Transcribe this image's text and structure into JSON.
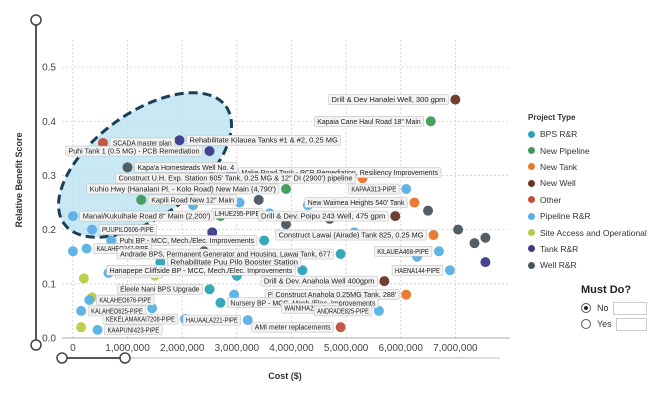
{
  "chart_data": {
    "type": "scatter",
    "xlabel": "Cost ($)",
    "ylabel": "Relative Benefit Score",
    "xlim": [
      -200000,
      8000000
    ],
    "ylim": [
      0,
      0.55
    ],
    "x_ticks": [
      0,
      1000000,
      2000000,
      3000000,
      4000000,
      5000000,
      6000000,
      7000000
    ],
    "x_tick_labels": [
      "0",
      "1,000,000",
      "2,000,000",
      "3,000,000",
      "4,000,000",
      "5,000,000",
      "6,000,000",
      "7,000,000"
    ],
    "y_ticks": [
      0,
      0.1,
      0.2,
      0.3,
      0.4,
      0.5
    ],
    "y_tick_labels": [
      "0.0",
      "0.1",
      "0.2",
      "0.3",
      "0.4",
      "0.5"
    ],
    "grid": true,
    "legend_position": "right",
    "legend_title": "Project Type",
    "series": [
      {
        "name": "BPS R&R",
        "color": "#2aa3b8"
      },
      {
        "name": "New Pipeline",
        "color": "#3e9a5a"
      },
      {
        "name": "New Tank",
        "color": "#e8762c"
      },
      {
        "name": "New Well",
        "color": "#6a3525"
      },
      {
        "name": "Other",
        "color": "#c0503a"
      },
      {
        "name": "Pipeline R&R",
        "color": "#5ab0e6"
      },
      {
        "name": "Site Access and Operational",
        "color": "#b8cc44"
      },
      {
        "name": "Tank R&R",
        "color": "#3a3a8a"
      },
      {
        "name": "Well R&R",
        "color": "#4a5560"
      }
    ],
    "labeled_points": [
      {
        "label": "Drill & Dev Hanalei Well, 300 gpm",
        "x": 7000000,
        "y": 0.44,
        "series": "New Well"
      },
      {
        "label": "Kapaia Cane Haul Road 18\" Main",
        "x": 6550000,
        "y": 0.4,
        "series": "New Pipeline"
      },
      {
        "label": "Rehabilitate Kilauea Tanks #1 & #2, 0.25 MG",
        "x": 1950000,
        "y": 0.365,
        "series": "Tank R&R"
      },
      {
        "label": "SCADA master plan",
        "x": 550000,
        "y": 0.36,
        "series": "Other"
      },
      {
        "label": "Puhi Tank 1 (0.5 MG) - PCB Remediation",
        "x": 2500000,
        "y": 0.345,
        "series": "Tank R&R"
      },
      {
        "label": "Kapa'a Homesteads Well No. 4",
        "x": 1000000,
        "y": 0.315,
        "series": "Well R&R"
      },
      {
        "label": "Make Road Tank - PCB Remediation, Resiliency Improvements",
        "x": 2900000,
        "y": 0.305,
        "series": "Tank R&R"
      },
      {
        "label": "Kapa'a 325' Tanks - Two 0.5 MG Tanks",
        "x": 1600000,
        "y": 0.295,
        "series": "New Tank"
      },
      {
        "label": "Construct U.H. Exp. Station 605' Tank, 0.25 MG & 12\" DI (2900') pipeline",
        "x": 5300000,
        "y": 0.295,
        "series": "New Tank"
      },
      {
        "label": "Kuhio Hwy (Hanalani Pl. - Kolo Road) New Main (4,790')",
        "x": 3900000,
        "y": 0.275,
        "series": "New Pipeline"
      },
      {
        "label": "KAPAA313-PIPE",
        "x": 6100000,
        "y": 0.275,
        "series": "Pipeline R&R"
      },
      {
        "label": "Kapili Road New 12\" Main",
        "x": 1250000,
        "y": 0.255,
        "series": "New Pipeline"
      },
      {
        "label": "New Waimea Heights 540' Tank",
        "x": 6250000,
        "y": 0.25,
        "series": "New Tank"
      },
      {
        "label": "LIHUE295-PIPE",
        "x": 3600000,
        "y": 0.23,
        "series": "Pipeline R&R"
      },
      {
        "label": "Drill & Dev. Poipu 243 Well, 475 gpm",
        "x": 5900000,
        "y": 0.225,
        "series": "New Well"
      },
      {
        "label": "Manai/Kukuihale Road 8\" Main (2,200')",
        "x": 2700000,
        "y": 0.225,
        "series": "New Pipeline"
      },
      {
        "label": "PUUPILO606-PIPE",
        "x": 350000,
        "y": 0.2,
        "series": "Pipeline R&R"
      },
      {
        "label": "Construct Lawai (Airade) Tank 825, 0.25 MG",
        "x": 6600000,
        "y": 0.19,
        "series": "New Tank"
      },
      {
        "label": "ANAHOLA144-PIPE",
        "x": 700000,
        "y": 0.18,
        "series": "Pipeline R&R"
      },
      {
        "label": "Puhi BP - MCC, Mech./Elec. Improvements",
        "x": 3500000,
        "y": 0.18,
        "series": "BPS R&R"
      },
      {
        "label": "KALAHEO247-PIPE",
        "x": 250000,
        "y": 0.165,
        "series": "Pipeline R&R"
      },
      {
        "label": "KILAUEA468-PIPE",
        "x": 6700000,
        "y": 0.16,
        "series": "Pipeline R&R"
      },
      {
        "label": "Andrade BPS, Permanent Generator and Housing, Lawai Tank, 677",
        "x": 4900000,
        "y": 0.155,
        "series": "BPS R&R"
      },
      {
        "label": "Rehabilitate Puu Pilo Booster Station",
        "x": 1600000,
        "y": 0.14,
        "series": "BPS R&R"
      },
      {
        "label": "KAPAIA200-PIPE",
        "x": 1900000,
        "y": 0.125,
        "series": "Pipeline R&R"
      },
      {
        "label": "PUHI453-PIPE",
        "x": 650000,
        "y": 0.12,
        "series": "Pipeline R&R"
      },
      {
        "label": "Hanapepe Cliffside BP - MCC, Mech./Elec. Improvements",
        "x": 4200000,
        "y": 0.125,
        "series": "BPS R&R"
      },
      {
        "label": "HAENA144-PIPE",
        "x": 6900000,
        "y": 0.125,
        "series": "Pipeline R&R"
      },
      {
        "label": "Drill & Dev. Anahola Well 400gpm",
        "x": 5700000,
        "y": 0.105,
        "series": "New Well"
      },
      {
        "label": "Eleele Nani BPS Upgrade",
        "x": 2500000,
        "y": 0.09,
        "series": "BPS R&R"
      },
      {
        "label": "PUUPANE466-PIPE",
        "x": 4700000,
        "y": 0.08,
        "series": "Pipeline R&R"
      },
      {
        "label": "Construct Anahola 0.25MG Tank, 288'",
        "x": 6100000,
        "y": 0.08,
        "series": "New Tank"
      },
      {
        "label": "KALAHEO676-PIPE",
        "x": 300000,
        "y": 0.07,
        "series": "Pipeline R&R"
      },
      {
        "label": "Nursery BP - MCC, Mech./Elec. Improvements",
        "x": 2700000,
        "y": 0.065,
        "series": "BPS R&R"
      },
      {
        "label": "WAINIHA224-PIPE",
        "x": 5000000,
        "y": 0.055,
        "series": "Pipeline R&R"
      },
      {
        "label": "ANDRADE825-PIPE",
        "x": 5600000,
        "y": 0.05,
        "series": "Pipeline R&R"
      },
      {
        "label": "KALAHEO625-PIPE",
        "x": 150000,
        "y": 0.05,
        "series": "Pipeline R&R"
      },
      {
        "label": "KEKELAMAKAI7208-PIPE",
        "x": 2050000,
        "y": 0.035,
        "series": "Pipeline R&R"
      },
      {
        "label": "HAUAALA221-PIPE",
        "x": 3200000,
        "y": 0.033,
        "series": "Pipeline R&R"
      },
      {
        "label": "KAAPUNI423-PIPE",
        "x": 450000,
        "y": 0.015,
        "series": "Pipeline R&R"
      },
      {
        "label": "AMI meter replacements",
        "x": 4900000,
        "y": 0.02,
        "series": "Other"
      }
    ],
    "unlabeled_points": [
      {
        "x": 0,
        "y": 0.225,
        "series": "Pipeline R&R"
      },
      {
        "x": 0,
        "y": 0.16,
        "series": "Pipeline R&R"
      },
      {
        "x": 200000,
        "y": 0.11,
        "series": "Site Access and Operational"
      },
      {
        "x": 150000,
        "y": 0.02,
        "series": "Site Access and Operational"
      },
      {
        "x": 350000,
        "y": 0.075,
        "series": "Site Access and Operational"
      },
      {
        "x": 1500000,
        "y": 0.115,
        "series": "Site Access and Operational"
      },
      {
        "x": 1450000,
        "y": 0.055,
        "series": "Pipeline R&R"
      },
      {
        "x": 2200000,
        "y": 0.245,
        "series": "Pipeline R&R"
      },
      {
        "x": 2550000,
        "y": 0.195,
        "series": "Tank R&R"
      },
      {
        "x": 2400000,
        "y": 0.16,
        "series": "Well R&R"
      },
      {
        "x": 3000000,
        "y": 0.115,
        "series": "BPS R&R"
      },
      {
        "x": 3400000,
        "y": 0.255,
        "series": "Well R&R"
      },
      {
        "x": 3900000,
        "y": 0.21,
        "series": "Well R&R"
      },
      {
        "x": 4300000,
        "y": 0.245,
        "series": "Pipeline R&R"
      },
      {
        "x": 4700000,
        "y": 0.22,
        "series": "Well R&R"
      },
      {
        "x": 5150000,
        "y": 0.195,
        "series": "Pipeline R&R"
      },
      {
        "x": 5600000,
        "y": 0.275,
        "series": "Well R&R"
      },
      {
        "x": 6300000,
        "y": 0.15,
        "series": "Pipeline R&R"
      },
      {
        "x": 6500000,
        "y": 0.235,
        "series": "Well R&R"
      },
      {
        "x": 7050000,
        "y": 0.2,
        "series": "Well R&R"
      },
      {
        "x": 7350000,
        "y": 0.175,
        "series": "Well R&R"
      },
      {
        "x": 7550000,
        "y": 0.185,
        "series": "Well R&R"
      },
      {
        "x": 7550000,
        "y": 0.14,
        "series": "Tank R&R"
      },
      {
        "x": 4300000,
        "y": 0.08,
        "series": "Pipeline R&R"
      },
      {
        "x": 3800000,
        "y": 0.02,
        "series": "Pipeline R&R"
      },
      {
        "x": 5300000,
        "y": 0.06,
        "series": "Pipeline R&R"
      },
      {
        "x": 800000,
        "y": 0.04,
        "series": "Pipeline R&R"
      },
      {
        "x": 2950000,
        "y": 0.08,
        "series": "Pipeline R&R"
      },
      {
        "x": 3050000,
        "y": 0.25,
        "series": "Pipeline R&R"
      }
    ]
  },
  "filter": {
    "title": "Must Do?",
    "options": [
      "No",
      "Yes"
    ],
    "selected": "No"
  }
}
